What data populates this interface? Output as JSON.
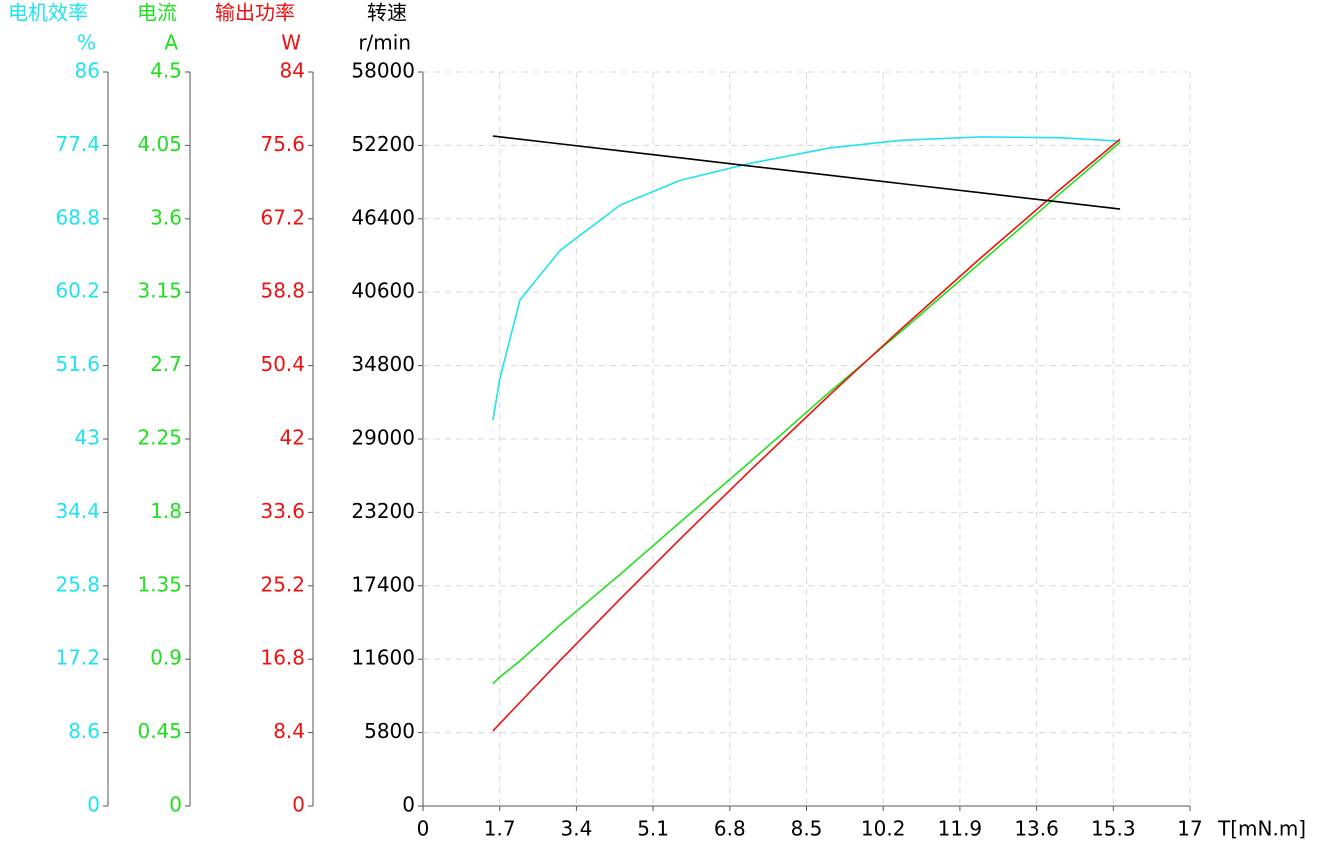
{
  "chart_data": {
    "type": "line",
    "x_label": "T[mN.m]",
    "xlim": [
      0,
      17
    ],
    "xticks": [
      0,
      1.7,
      3.4,
      5.1,
      6.8,
      8.5,
      10.2,
      11.9,
      13.6,
      15.3,
      17
    ],
    "grid": true,
    "y_axes": [
      {
        "id": "eff",
        "title": "电机效率",
        "unit": "%",
        "color": "#1ee3f0",
        "lim": [
          0,
          86
        ],
        "ticks": [
          0,
          8.6,
          17.2,
          25.8,
          34.4,
          43,
          51.6,
          60.2,
          68.8,
          77.4,
          86
        ]
      },
      {
        "id": "cur",
        "title": "电流",
        "unit": "A",
        "color": "#1ee01e",
        "lim": [
          0,
          4.5
        ],
        "ticks": [
          0,
          0.45,
          0.9,
          1.35,
          1.8,
          2.25,
          2.7,
          3.15,
          3.6,
          4.05,
          4.5
        ]
      },
      {
        "id": "pow",
        "title": "输出功率",
        "unit": "W",
        "color": "#ee1111",
        "lim": [
          0,
          84
        ],
        "ticks": [
          0,
          8.4,
          16.8,
          25.2,
          33.6,
          42,
          50.4,
          58.8,
          67.2,
          75.6,
          84
        ]
      },
      {
        "id": "spd",
        "title": "转速",
        "unit": "r/min",
        "color": "#000000",
        "lim": [
          0,
          58000
        ],
        "ticks": [
          0,
          5800,
          11600,
          17400,
          23200,
          29000,
          34800,
          40600,
          46400,
          52200,
          58000
        ]
      }
    ],
    "x": [
      1.55,
      1.7,
      2.15,
      3.04,
      4.37,
      5.7,
      7.25,
      9.02,
      10.6,
      12.35,
      14.1,
      15.45
    ],
    "series": [
      {
        "axis": "eff",
        "color": "#1ee3f0",
        "values": [
          45.2,
          50,
          59.3,
          65.1,
          70.4,
          73.3,
          75.3,
          77.1,
          78.0,
          78.4,
          78.3,
          77.9
        ]
      },
      {
        "axis": "cur",
        "color": "#1ee01e",
        "values": [
          0.75,
          0.79,
          0.89,
          1.11,
          1.42,
          1.74,
          2.11,
          2.54,
          2.91,
          3.33,
          3.75,
          4.07
        ]
      },
      {
        "axis": "pow",
        "color": "#ee1111",
        "values": [
          8.59,
          9.41,
          11.86,
          16.66,
          23.69,
          30.57,
          38.39,
          47.08,
          54.59,
          62.67,
          70.48,
          76.32
        ]
      },
      {
        "axis": "spd",
        "color": "#000000",
        "values": [
          52940,
          52880,
          52690,
          52320,
          51770,
          51220,
          50570,
          49840,
          49180,
          48460,
          47730,
          47170
        ]
      }
    ]
  }
}
